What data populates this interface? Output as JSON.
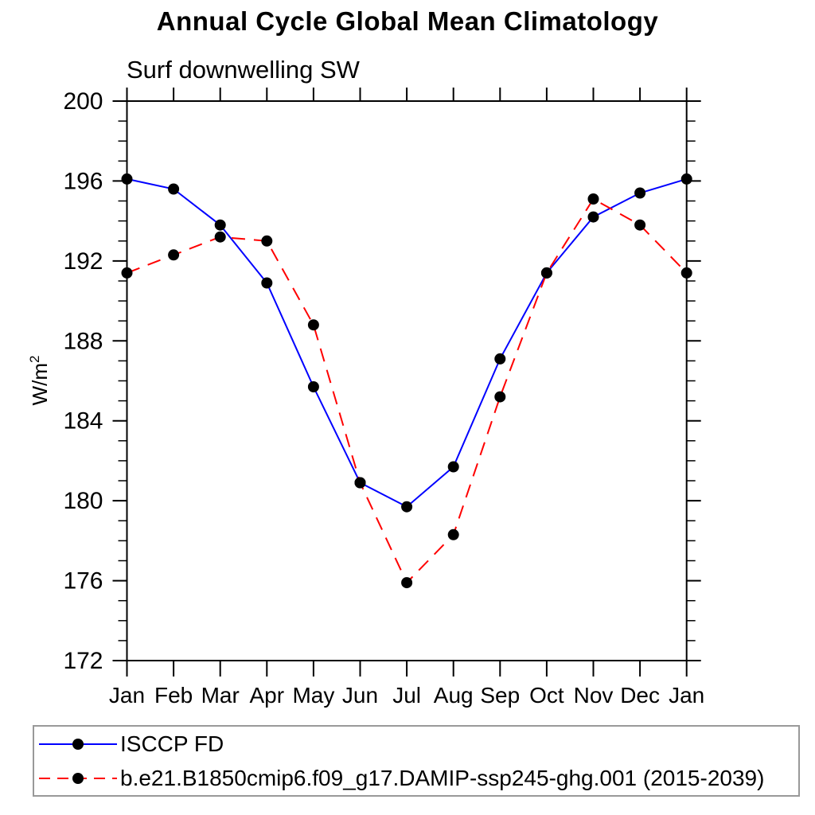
{
  "title": "Annual Cycle Global Mean Climatology",
  "subtitle": "Surf downwelling SW",
  "chart_data": {
    "type": "line",
    "title": "Annual Cycle Global Mean Climatology",
    "subtitle": "Surf downwelling SW",
    "ylabel_base": "W/m",
    "ylabel_exponent": "2",
    "categories": [
      "Jan",
      "Feb",
      "Mar",
      "Apr",
      "May",
      "Jun",
      "Jul",
      "Aug",
      "Sep",
      "Oct",
      "Nov",
      "Dec",
      "Jan"
    ],
    "ylim": [
      172,
      200
    ],
    "ytick_labels": [
      "172",
      "176",
      "180",
      "184",
      "188",
      "192",
      "196",
      "200"
    ],
    "ytick_major_step": 4,
    "ytick_minor_step": 1,
    "grid": false,
    "legend_position": "bottom-left",
    "series": [
      {
        "name": "ISCCP FD",
        "color": "#0000ff",
        "line_style": "solid",
        "marker": "filled-circle",
        "marker_color": "#000000",
        "values": [
          196.1,
          195.6,
          193.8,
          190.9,
          185.7,
          180.9,
          179.7,
          181.7,
          187.1,
          191.4,
          194.2,
          195.4,
          196.1
        ]
      },
      {
        "name": "b.e21.B1850cmip6.f09_g17.DAMIP-ssp245-ghg.001 (2015-2039)",
        "color": "#ff0000",
        "line_style": "dashed",
        "marker": "filled-circle",
        "marker_color": "#000000",
        "values": [
          191.4,
          192.3,
          193.2,
          193.0,
          188.8,
          180.9,
          175.9,
          178.3,
          185.2,
          191.4,
          195.1,
          193.8,
          191.4
        ]
      }
    ]
  },
  "colors": {
    "background": "#ffffff",
    "axis": "#000000",
    "text": "#000000",
    "marker": "#000000",
    "series_isccp": "#0000ff",
    "series_model": "#ff0000",
    "legend_border": "#999999"
  }
}
